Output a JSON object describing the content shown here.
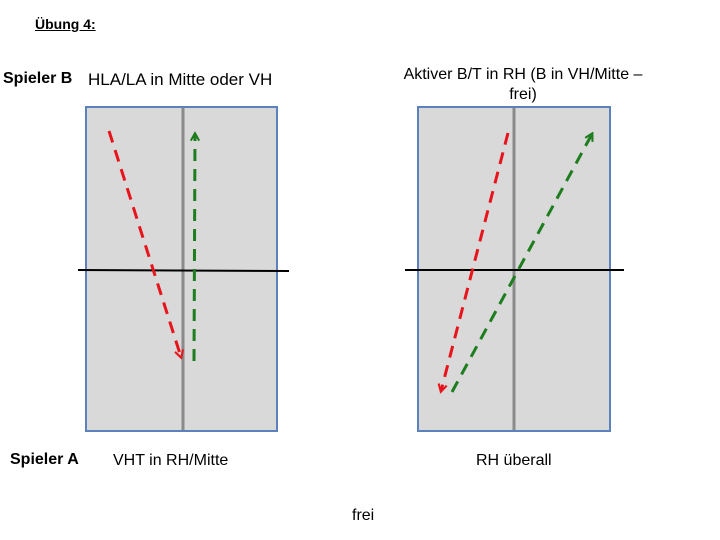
{
  "title": "Übung 4:",
  "labels": {
    "spieler_b": "Spieler B",
    "spieler_a": "Spieler A"
  },
  "panels": [
    {
      "top_text": "HLA/LA in Mitte oder VH",
      "bottom_text": "VHT in RH/Mitte"
    },
    {
      "top_text": "Aktiver B/T in RH (B in VH/Mitte – frei)",
      "bottom_text": "RH überall"
    }
  ],
  "footer": "frei",
  "colors": {
    "table_fill": "#d9d9d9",
    "table_border": "#5b82bd",
    "net_line": "#000000",
    "centre_line": "#8a8a8a",
    "red_arrow": "#e8141b",
    "green_arrow": "#1e7d1e"
  }
}
